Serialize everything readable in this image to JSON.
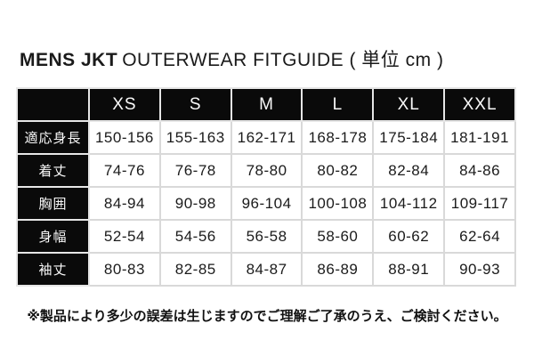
{
  "title": {
    "brand": "MENS JKT",
    "subtitle": "OUTERWEAR FITGUIDE ( 単位 cm )"
  },
  "chart_data": {
    "type": "table",
    "title": "MENS JKT OUTERWEAR FITGUIDE",
    "unit_label": "単位 cm",
    "corner": "",
    "columns": [
      "XS",
      "S",
      "M",
      "L",
      "XL",
      "XXL"
    ],
    "rows": [
      {
        "label": "適応身長",
        "values": [
          "150-156",
          "155-163",
          "162-171",
          "168-178",
          "175-184",
          "181-191"
        ]
      },
      {
        "label": "着丈",
        "values": [
          "74-76",
          "76-78",
          "78-80",
          "80-82",
          "82-84",
          "84-86"
        ]
      },
      {
        "label": "胸囲",
        "values": [
          "84-94",
          "90-98",
          "96-104",
          "100-108",
          "104-112",
          "109-117"
        ]
      },
      {
        "label": "身幅",
        "values": [
          "52-54",
          "54-56",
          "56-58",
          "58-60",
          "60-62",
          "62-64"
        ]
      },
      {
        "label": "袖丈",
        "values": [
          "80-83",
          "82-85",
          "84-87",
          "86-89",
          "88-91",
          "90-93"
        ]
      }
    ]
  },
  "footer": {
    "note": "※製品により多少の誤差は生じますのでご理解ご了承のうえ、ご検討ください。"
  },
  "colors": {
    "header_bg": "#0a0a0a",
    "header_text": "#fafafa",
    "cell_bg": "#ffffff",
    "cell_text": "#1b1b1b",
    "border": "#d9d9d9",
    "page_bg": "#ffffff"
  }
}
